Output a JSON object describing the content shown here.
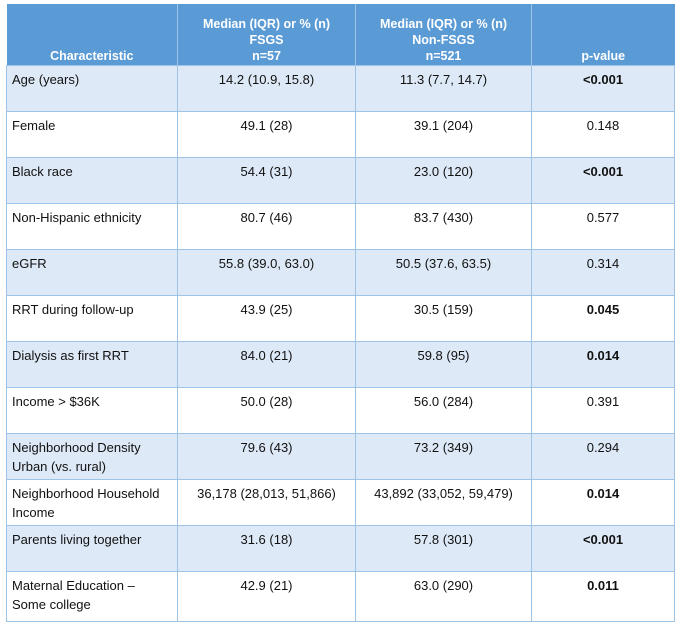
{
  "header": {
    "characteristic": "Characteristic",
    "fsgs": [
      "Median (IQR) or % (n)",
      "FSGS",
      "n=57"
    ],
    "nonfsgs": [
      "Median (IQR) or % (n)",
      "Non-FSGS",
      "n=521"
    ],
    "pvalue": "p-value"
  },
  "rows": [
    {
      "label": "Age (years)",
      "fsgs": "14.2 (10.9, 15.8)",
      "nonfsgs": "11.3 (7.7, 14.7)",
      "p": "<0.001",
      "bold": true
    },
    {
      "label": "Female",
      "fsgs": "49.1 (28)",
      "nonfsgs": "39.1 (204)",
      "p": "0.148",
      "bold": false
    },
    {
      "label": "Black race",
      "fsgs": "54.4 (31)",
      "nonfsgs": "23.0 (120)",
      "p": "<0.001",
      "bold": true
    },
    {
      "label": "Non-Hispanic ethnicity",
      "fsgs": "80.7 (46)",
      "nonfsgs": "83.7 (430)",
      "p": "0.577",
      "bold": false
    },
    {
      "label": "eGFR",
      "fsgs": "55.8 (39.0, 63.0)",
      "nonfsgs": "50.5 (37.6, 63.5)",
      "p": "0.314",
      "bold": false
    },
    {
      "label": "RRT during follow-up",
      "fsgs": "43.9 (25)",
      "nonfsgs": "30.5 (159)",
      "p": "0.045",
      "bold": true
    },
    {
      "label": "Dialysis as first RRT",
      "fsgs": "84.0 (21)",
      "nonfsgs": "59.8 (95)",
      "p": "0.014",
      "bold": true
    },
    {
      "label": "Income > $36K",
      "fsgs": "50.0 (28)",
      "nonfsgs": "56.0 (284)",
      "p": "0.391",
      "bold": false
    },
    {
      "label": "Neighborhood Density Urban (vs. rural)",
      "fsgs": "79.6 (43)",
      "nonfsgs": "73.2 (349)",
      "p": "0.294",
      "bold": false
    },
    {
      "label": "Neighborhood Household Income",
      "fsgs": "36,178 (28,013, 51,866)",
      "nonfsgs": "43,892 (33,052, 59,479)",
      "p": "0.014",
      "bold": true
    },
    {
      "label": "Parents living together",
      "fsgs": "31.6 (18)",
      "nonfsgs": "57.8 (301)",
      "p": "<0.001",
      "bold": true
    },
    {
      "label": "Maternal Education – Some college",
      "fsgs": "42.9 (21)",
      "nonfsgs": "63.0 (290)",
      "p": "0.011",
      "bold": true
    }
  ]
}
